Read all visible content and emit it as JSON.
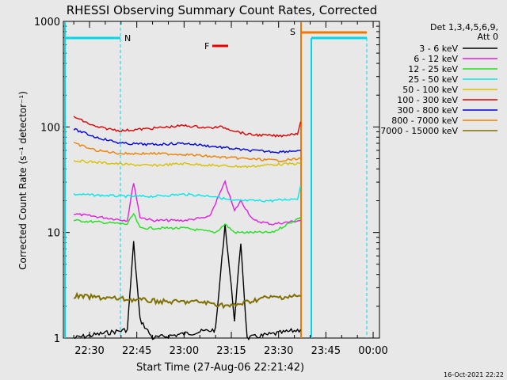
{
  "chart_data": {
    "type": "line",
    "title": "RHESSI Observing Summary Count Rates, Corrected",
    "xlabel": "Start Time (27-Aug-06 22:21:42)",
    "ylabel": "Corrected Count Rate (s⁻¹ detector⁻¹)",
    "yscale": "log",
    "ylim": [
      1,
      1000
    ],
    "xlim": [
      "22:21:42",
      "00:02:00"
    ],
    "x_ticks": [
      "22:30",
      "22:45",
      "23:00",
      "23:15",
      "23:30",
      "23:45",
      "00:00"
    ],
    "y_ticks": [
      "1",
      "10",
      "100",
      "1000"
    ],
    "legend_header": [
      "Det 1,3,4,5,6,9,",
      "Att 0"
    ],
    "legend_placement": "right",
    "footer_date": "16-Oct-2021 22:22",
    "flags": [
      {
        "label": "N",
        "color": "#00d8e8"
      },
      {
        "label": "F",
        "color": "#e80000"
      },
      {
        "label": "S",
        "color": "#f07800"
      }
    ],
    "series": [
      {
        "name": "3 - 6 keV",
        "color": "#000000",
        "points": [
          [
            "22:25",
            1.0
          ],
          [
            "22:42",
            1.2
          ],
          [
            "22:44",
            8.0
          ],
          [
            "22:46",
            1.5
          ],
          [
            "22:50",
            1.0
          ],
          [
            "23:10",
            1.2
          ],
          [
            "23:13",
            12.0
          ],
          [
            "23:16",
            1.5
          ],
          [
            "23:18",
            8.0
          ],
          [
            "23:20",
            1.0
          ],
          [
            "23:37",
            1.2
          ]
        ]
      },
      {
        "name": "6 - 12 keV",
        "color": "#e020e0",
        "points": [
          [
            "22:25",
            15
          ],
          [
            "22:42",
            13
          ],
          [
            "22:44",
            30
          ],
          [
            "22:46",
            14
          ],
          [
            "22:50",
            13
          ],
          [
            "23:00",
            13
          ],
          [
            "23:08",
            14
          ],
          [
            "23:13",
            30
          ],
          [
            "23:16",
            16
          ],
          [
            "23:18",
            20
          ],
          [
            "23:22",
            13
          ],
          [
            "23:28",
            12
          ],
          [
            "23:37",
            13
          ]
        ]
      },
      {
        "name": "12 - 25 keV",
        "color": "#20e020",
        "points": [
          [
            "22:25",
            13
          ],
          [
            "22:42",
            12
          ],
          [
            "22:44",
            15
          ],
          [
            "22:46",
            11
          ],
          [
            "22:50",
            11
          ],
          [
            "23:00",
            11
          ],
          [
            "23:10",
            10
          ],
          [
            "23:13",
            12
          ],
          [
            "23:16",
            10
          ],
          [
            "23:20",
            10
          ],
          [
            "23:28",
            10
          ],
          [
            "23:37",
            14
          ]
        ]
      },
      {
        "name": "25 - 50 keV",
        "color": "#00e8e8",
        "points": [
          [
            "22:25",
            23
          ],
          [
            "22:42",
            22
          ],
          [
            "22:50",
            22
          ],
          [
            "23:00",
            23
          ],
          [
            "23:10",
            22
          ],
          [
            "23:15",
            20
          ],
          [
            "23:28",
            20
          ],
          [
            "23:36",
            21
          ],
          [
            "23:37",
            28
          ]
        ]
      },
      {
        "name": "50 - 100 keV",
        "color": "#d8c000",
        "points": [
          [
            "22:25",
            48
          ],
          [
            "22:42",
            44
          ],
          [
            "22:50",
            43
          ],
          [
            "23:00",
            45
          ],
          [
            "23:10",
            43
          ],
          [
            "23:20",
            42
          ],
          [
            "23:28",
            44
          ],
          [
            "23:37",
            45
          ]
        ]
      },
      {
        "name": "100 - 300 keV",
        "color": "#e00000",
        "points": [
          [
            "22:25",
            125
          ],
          [
            "22:32",
            100
          ],
          [
            "22:40",
            92
          ],
          [
            "22:50",
            97
          ],
          [
            "23:00",
            103
          ],
          [
            "23:08",
            98
          ],
          [
            "23:12",
            100
          ],
          [
            "23:20",
            85
          ],
          [
            "23:30",
            82
          ],
          [
            "23:36",
            87
          ],
          [
            "23:37",
            112
          ]
        ]
      },
      {
        "name": "300 - 800 keV",
        "color": "#0000e0",
        "points": [
          [
            "22:25",
            95
          ],
          [
            "22:32",
            80
          ],
          [
            "22:40",
            70
          ],
          [
            "22:50",
            68
          ],
          [
            "23:00",
            70
          ],
          [
            "23:10",
            65
          ],
          [
            "23:20",
            60
          ],
          [
            "23:30",
            58
          ],
          [
            "23:37",
            60
          ]
        ]
      },
      {
        "name": "800 - 7000 keV",
        "color": "#f08000",
        "points": [
          [
            "22:25",
            70
          ],
          [
            "22:32",
            60
          ],
          [
            "22:40",
            56
          ],
          [
            "22:50",
            56
          ],
          [
            "23:00",
            55
          ],
          [
            "23:10",
            52
          ],
          [
            "23:20",
            50
          ],
          [
            "23:30",
            48
          ],
          [
            "23:37",
            50
          ]
        ]
      },
      {
        "name": "7000 - 15000 keV",
        "color": "#807000",
        "points": [
          [
            "22:25",
            2.5
          ],
          [
            "22:35",
            2.4
          ],
          [
            "22:45",
            2.3
          ],
          [
            "22:55",
            2.2
          ],
          [
            "23:05",
            2.2
          ],
          [
            "23:15",
            2.0
          ],
          [
            "23:25",
            2.4
          ],
          [
            "23:37",
            2.5
          ]
        ]
      }
    ]
  }
}
